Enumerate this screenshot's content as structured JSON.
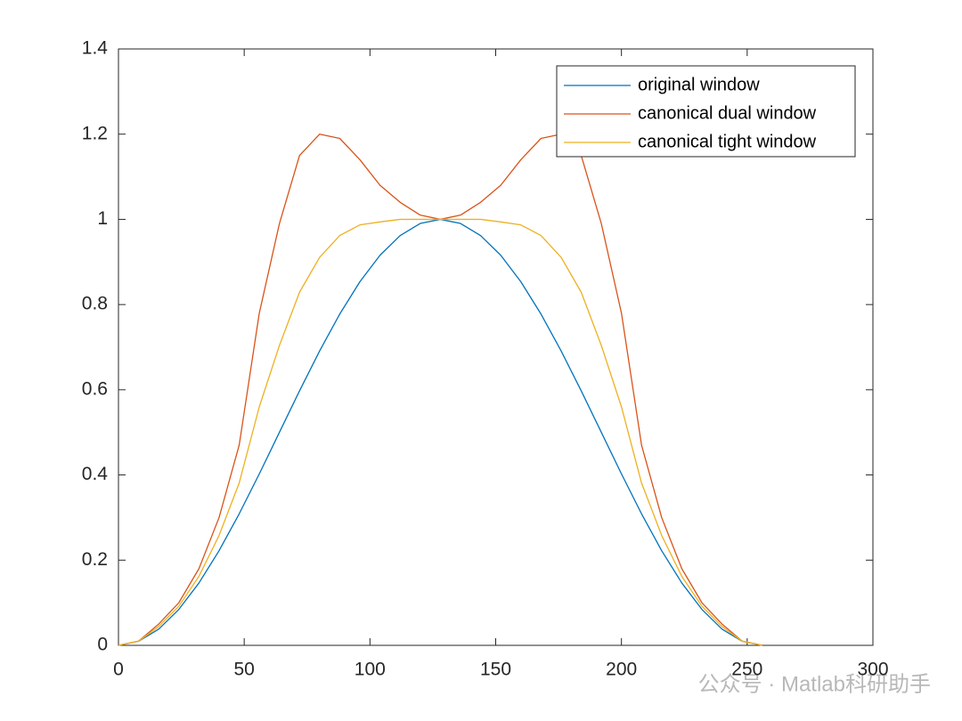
{
  "chart_data": {
    "type": "line",
    "x": [
      0,
      8,
      16,
      24,
      32,
      40,
      48,
      56,
      64,
      72,
      80,
      88,
      96,
      104,
      112,
      120,
      128,
      136,
      144,
      152,
      160,
      168,
      176,
      184,
      192,
      200,
      208,
      216,
      224,
      232,
      240,
      248,
      256
    ],
    "series": [
      {
        "name": "original window",
        "color": "#0072BD",
        "values": [
          0,
          0.0096,
          0.038,
          0.0843,
          0.1464,
          0.2222,
          0.3087,
          0.4025,
          0.5,
          0.5975,
          0.6913,
          0.7778,
          0.8536,
          0.9157,
          0.9619,
          0.9904,
          1,
          0.9904,
          0.9619,
          0.9157,
          0.8536,
          0.7778,
          0.6913,
          0.5975,
          0.5,
          0.4025,
          0.3087,
          0.2222,
          0.1464,
          0.0843,
          0.038,
          0.0096,
          0
        ]
      },
      {
        "name": "canonical dual window",
        "color": "#D95319",
        "values": [
          0,
          0.01,
          0.05,
          0.1,
          0.18,
          0.3,
          0.47,
          0.78,
          0.99,
          1.15,
          1.2,
          1.19,
          1.14,
          1.08,
          1.04,
          1.01,
          1,
          1.01,
          1.04,
          1.08,
          1.14,
          1.19,
          1.2,
          1.15,
          0.99,
          0.78,
          0.47,
          0.3,
          0.18,
          0.1,
          0.05,
          0.01,
          0
        ]
      },
      {
        "name": "canonical tight window",
        "color": "#EDB120",
        "values": [
          0,
          0.0098,
          0.044,
          0.0918,
          0.162,
          0.258,
          0.381,
          0.56,
          0.704,
          0.829,
          0.911,
          0.962,
          0.987,
          0.994,
          1,
          1,
          1,
          1,
          1,
          0.994,
          0.987,
          0.962,
          0.911,
          0.829,
          0.704,
          0.56,
          0.381,
          0.258,
          0.162,
          0.0918,
          0.044,
          0.0098,
          0
        ]
      }
    ],
    "xlim": [
      0,
      300
    ],
    "xticks": [
      0,
      50,
      100,
      150,
      200,
      250,
      300
    ],
    "ylim": [
      0,
      1.4
    ],
    "yticks": [
      0,
      0.2,
      0.4,
      0.6,
      0.8,
      1,
      1.2,
      1.4
    ],
    "legend": "top-right",
    "grid": false,
    "watermark": "公众号 · Matlab科研助手"
  }
}
